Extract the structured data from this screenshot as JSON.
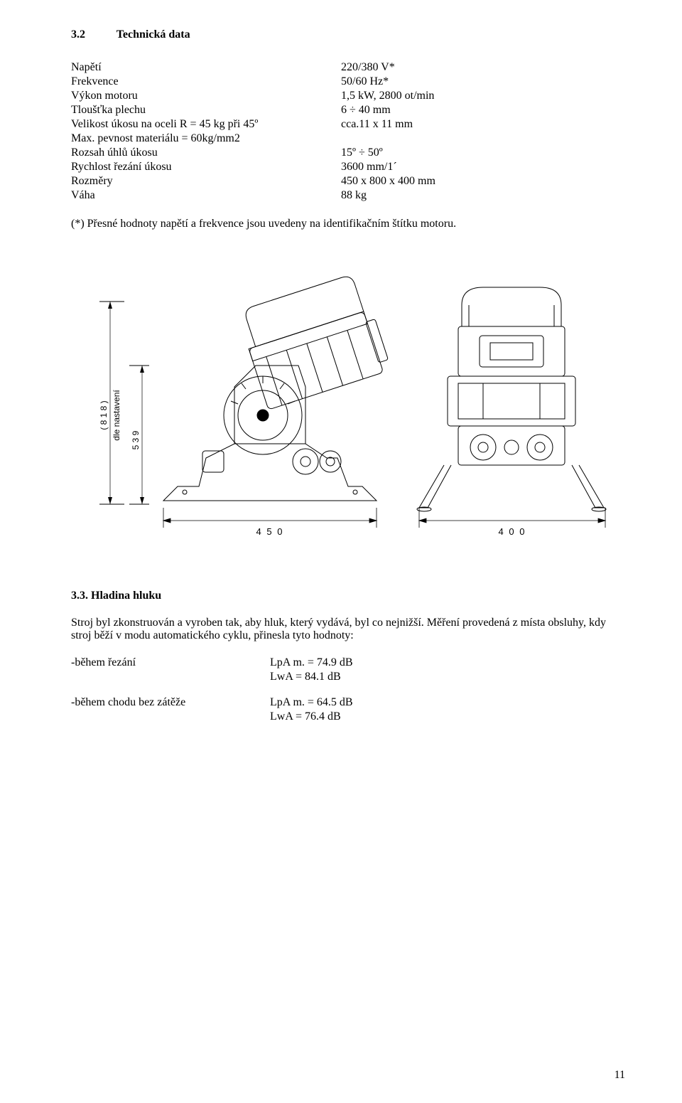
{
  "section": {
    "num": "3.2",
    "title": "Technická data"
  },
  "specs": [
    {
      "label": "Napětí",
      "value": "220/380 V*"
    },
    {
      "label": "Frekvence",
      "value": "50/60 Hz*"
    },
    {
      "label": "Výkon motoru",
      "value": "1,5 kW, 2800 ot/min"
    },
    {
      "label": "Tloušťka plechu",
      "value": "6 ÷ 40 mm"
    },
    {
      "label": "Velikost úkosu na oceli R = 45 kg při 45º",
      "value": "cca.11 x 11 mm"
    },
    {
      "label": "Max. pevnost materiálu = 60kg/mm2",
      "value": ""
    },
    {
      "label": "Rozsah úhlů úkosu",
      "value": "15º ÷ 50º"
    },
    {
      "label": "Rychlost řezání úkosu",
      "value": "3600 mm/1´"
    },
    {
      "label": "Rozměry",
      "value": "450 x 800 x 400 mm"
    },
    {
      "label": "Váha",
      "value": "88 kg"
    }
  ],
  "footnote": "(*) Přesné hodnoty napětí a frekvence jsou uvedeny na identifikačním štítku motoru.",
  "diagram": {
    "v_paren": "( 8 1 8 )",
    "v_text": "dle nastavení",
    "v_num": "5 3 9",
    "dim_left": "4 5 0",
    "dim_right": "4 0 0",
    "stroke": "#000000",
    "bg": "#ffffff",
    "line_width": 1
  },
  "noise": {
    "num": "3.3.",
    "title": "Hladina hluku",
    "para": "Stroj byl zkonstruován a vyroben tak, aby hluk, který vydává, byl co nejnižší. Měření  provedená z místa obsluhy, kdy stroj běží v modu automatického cyklu, přinesla tyto hodnoty:",
    "rows": [
      {
        "label": "-během řezání",
        "v1": "LpA m. = 74.9 dB",
        "v2": "LwA = 84.1 dB"
      },
      {
        "label": "-během chodu bez zátěže",
        "v1": "LpA m. = 64.5 dB",
        "v2": "LwA = 76.4 dB"
      }
    ]
  },
  "page_number": "11"
}
